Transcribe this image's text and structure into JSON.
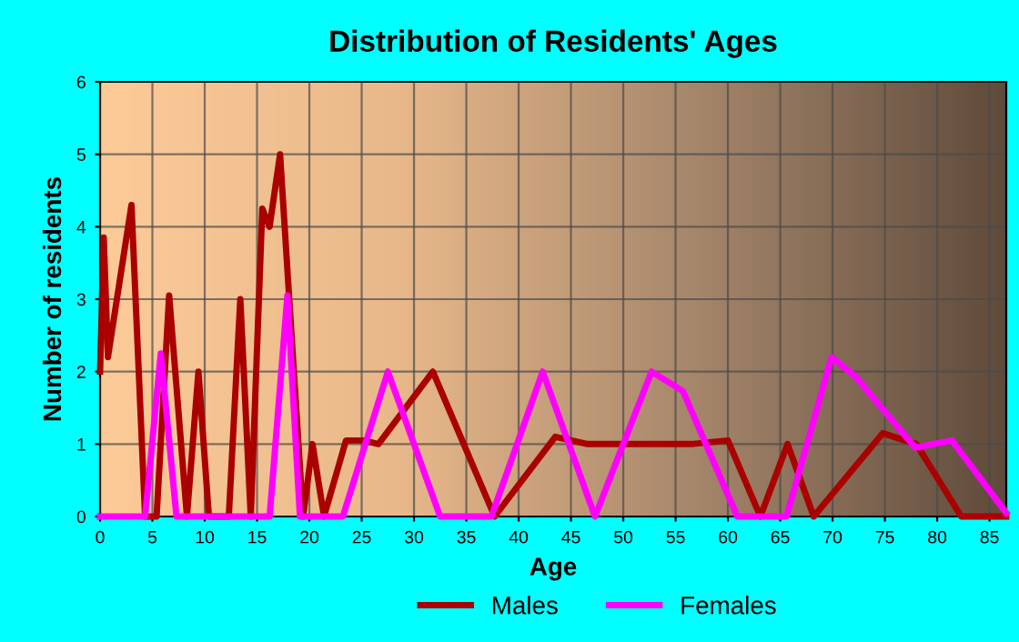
{
  "chart_data": {
    "type": "line",
    "title": "Distribution of Residents' Ages",
    "xlabel": "Age",
    "ylabel": "Number of residents",
    "xlim": [
      0,
      86.6
    ],
    "xticks": [
      0,
      5,
      10,
      15,
      20,
      25,
      30,
      35,
      40,
      45,
      50,
      55,
      60,
      65,
      70,
      75,
      80,
      85
    ],
    "ylim": [
      0,
      6
    ],
    "yticks": [
      0,
      1,
      2,
      3,
      4,
      5,
      6
    ],
    "grid": true,
    "legend": "bottom",
    "line_style": "solid",
    "marker": "none",
    "series": [
      {
        "name": "Males",
        "color": "#aa0000",
        "x": [
          0,
          0.35,
          0.75,
          3.0,
          4.3,
          5.4,
          6.6,
          8.3,
          9.4,
          10.4,
          12.3,
          13.4,
          14.4,
          15.5,
          16.2,
          17.2,
          19.4,
          20.3,
          21.4,
          23.5,
          25.2,
          26.6,
          31.8,
          37.7,
          43.5,
          46.6,
          56.5,
          60,
          63.1,
          65.7,
          68.2,
          74.8,
          78,
          82.3,
          86.6
        ],
        "values": [
          2.0,
          3.85,
          2.2,
          4.3,
          0,
          0,
          3.05,
          0,
          2.0,
          0,
          0,
          3.0,
          0,
          4.25,
          4.0,
          5.0,
          0,
          1.0,
          0,
          1.05,
          1.05,
          1.0,
          2.0,
          0,
          1.1,
          1.0,
          1.0,
          1.05,
          0,
          1.0,
          0,
          1.15,
          1.0,
          0,
          0
        ]
      },
      {
        "name": "Females",
        "color": "#ff00ff",
        "x": [
          0,
          4.3,
          5.8,
          7.3,
          16.2,
          17.9,
          19.1,
          23.2,
          27.5,
          32.5,
          37.4,
          42.3,
          47.3,
          52.7,
          55.7,
          60.9,
          65.6,
          69.9,
          72.2,
          77.9,
          81.4,
          86.6
        ],
        "values": [
          0,
          0,
          2.25,
          0,
          0,
          3.05,
          0,
          0,
          2.0,
          0,
          0,
          2.0,
          0,
          2.0,
          1.73,
          0,
          0,
          2.2,
          1.93,
          0.95,
          1.05,
          0.05
        ]
      }
    ]
  }
}
